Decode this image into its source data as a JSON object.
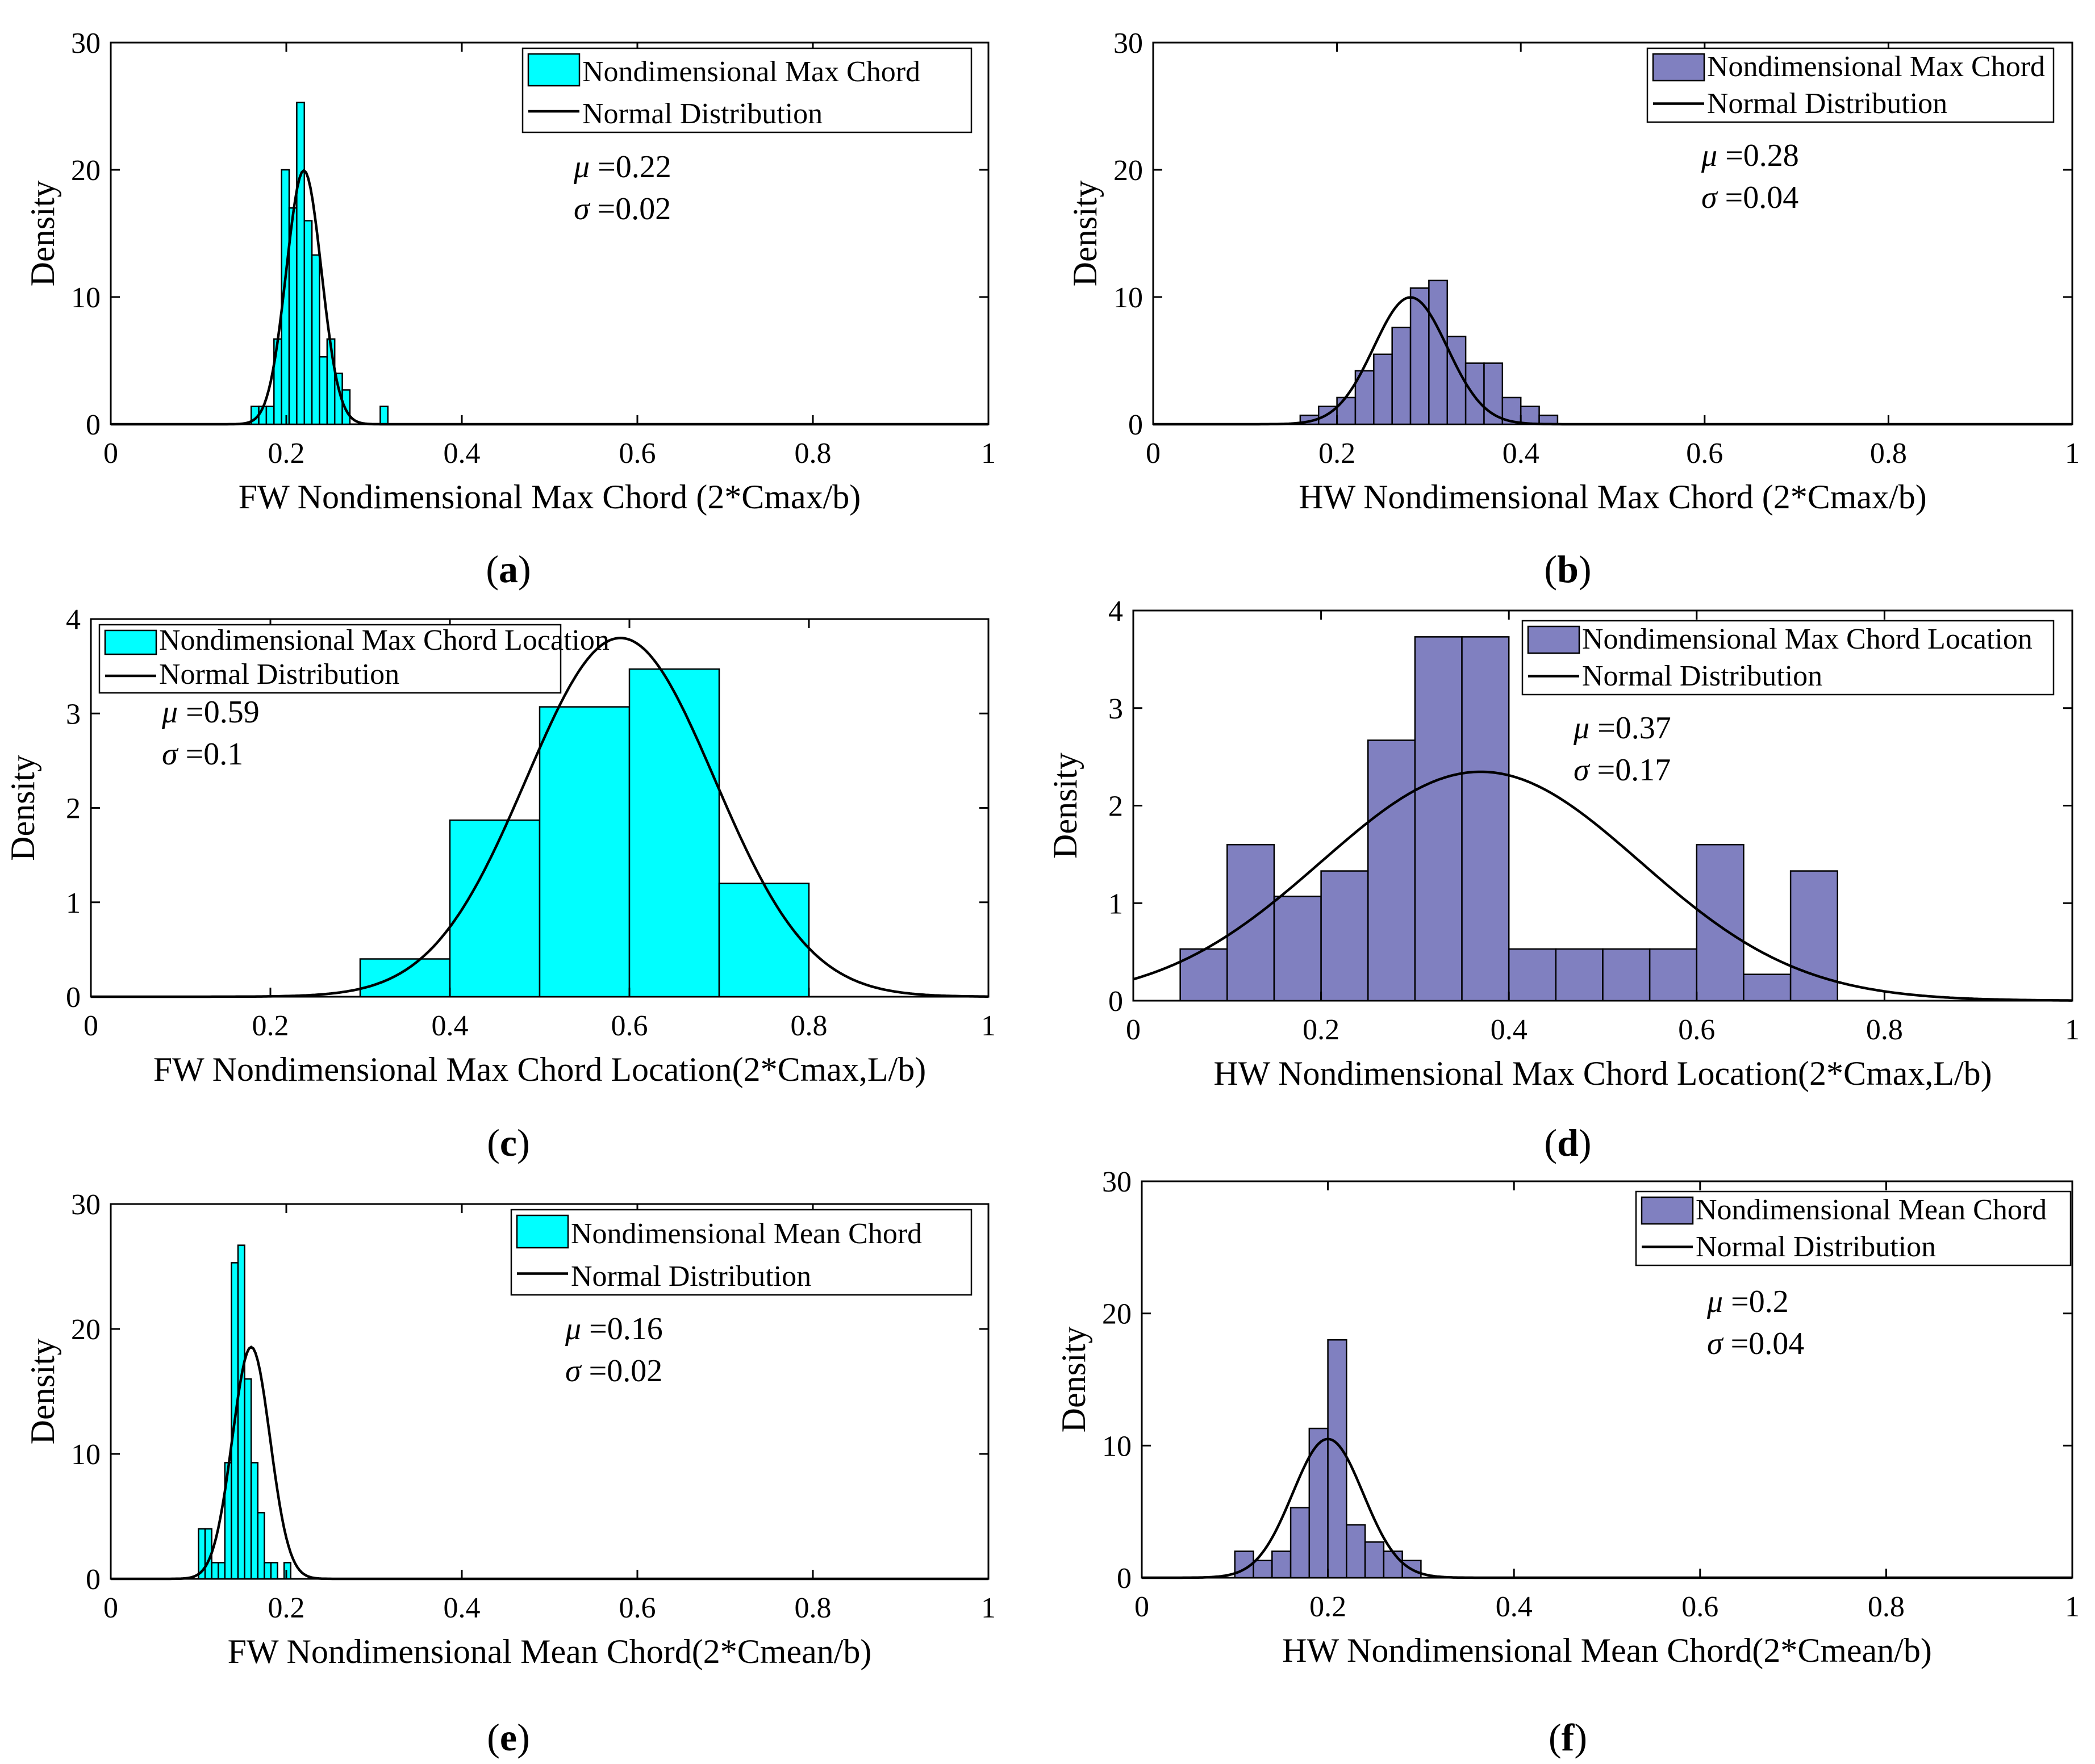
{
  "chart_data": [
    {
      "type": "bar",
      "panel_label": "a",
      "xlabel": "FW Nondimensional Max Chord (2*Cmax/b)",
      "ylabel": "Density",
      "xlim": [
        0,
        1
      ],
      "ylim": [
        0,
        30
      ],
      "xticks": [
        "0",
        "0.2",
        "0.4",
        "0.6",
        "0.8",
        "1"
      ],
      "yticks": [
        "0",
        "10",
        "20",
        "30"
      ],
      "legend_position": "top-right",
      "legend": [
        "Nondimensional Max Chord",
        "Normal Distribution"
      ],
      "stats": {
        "mu": "0.22",
        "sigma": "0.02"
      },
      "mu": 0.22,
      "sigma": 0.02,
      "bar_color": "#00ffff",
      "bins": {
        "start": 0.16,
        "width": 0.00865,
        "values": [
          1.4,
          1.4,
          1.4,
          6.7,
          20,
          17,
          25.3,
          16,
          13.3,
          5.3,
          6.7,
          4,
          2.7,
          0,
          0,
          0,
          0,
          1.4
        ]
      }
    },
    {
      "type": "bar",
      "panel_label": "b",
      "xlabel": "HW Nondimensional Max Chord (2*Cmax/b)",
      "ylabel": "Density",
      "xlim": [
        0,
        1
      ],
      "ylim": [
        0,
        30
      ],
      "xticks": [
        "0",
        "0.2",
        "0.4",
        "0.6",
        "0.8",
        "1"
      ],
      "yticks": [
        "0",
        "10",
        "20",
        "30"
      ],
      "legend_position": "top-right",
      "legend": [
        "Nondimensional Max Chord",
        "Normal Distribution"
      ],
      "stats": {
        "mu": "0.28",
        "sigma": "0.04"
      },
      "mu": 0.28,
      "sigma": 0.04,
      "bar_color": "#8080c0",
      "bins": {
        "start": 0.16,
        "width": 0.02,
        "values": [
          0.7,
          1.4,
          2.1,
          4.2,
          5.5,
          7.6,
          10.7,
          11.3,
          6.9,
          4.8,
          4.8,
          2.1,
          1.4,
          0.7
        ]
      }
    },
    {
      "type": "bar",
      "panel_label": "c",
      "xlabel": "FW Nondimensional Max Chord Location(2*Cmax,L/b)",
      "ylabel": "Density",
      "xlim": [
        0,
        1
      ],
      "ylim": [
        0,
        4
      ],
      "xticks": [
        "0",
        "0.2",
        "0.4",
        "0.6",
        "0.8",
        "1"
      ],
      "yticks": [
        "0",
        "1",
        "2",
        "3",
        "4"
      ],
      "legend_position": "top-left",
      "legend": [
        "Nondimensional Max Chord Location",
        "Normal Distribution"
      ],
      "stats": {
        "mu": "0.59",
        "sigma": "0.1"
      },
      "mu": 0.59,
      "sigma": 0.105,
      "bar_color": "#00ffff",
      "bins": {
        "start": 0.3,
        "width": 0.1,
        "values": [
          0.4,
          1.87,
          3.07,
          3.47,
          1.2
        ]
      }
    },
    {
      "type": "bar",
      "panel_label": "d",
      "xlabel": "HW Nondimensional Max Chord Location(2*Cmax,L/b)",
      "ylabel": "Density",
      "xlim": [
        0,
        1
      ],
      "ylim": [
        0,
        4
      ],
      "xticks": [
        "0",
        "0.2",
        "0.4",
        "0.6",
        "0.8",
        "1"
      ],
      "yticks": [
        "0",
        "1",
        "2",
        "3",
        "4"
      ],
      "legend_position": "top-right",
      "legend": [
        "Nondimensional Max Chord Location",
        "Normal Distribution"
      ],
      "stats": {
        "mu": "0.37",
        "sigma": "0.17"
      },
      "mu": 0.37,
      "sigma": 0.17,
      "bar_color": "#8080c0",
      "bins": {
        "start": 0.05,
        "width": 0.05,
        "values": [
          0.53,
          1.6,
          1.07,
          1.33,
          2.67,
          3.73,
          3.73,
          0.53,
          0.53,
          0.53,
          0.53,
          1.6,
          0.27,
          1.33
        ]
      }
    },
    {
      "type": "bar",
      "panel_label": "e",
      "xlabel": "FW Nondimensional Mean Chord(2*Cmean/b)",
      "ylabel": "Density",
      "xlim": [
        0,
        1
      ],
      "ylim": [
        0,
        30
      ],
      "xticks": [
        "0",
        "0.2",
        "0.4",
        "0.6",
        "0.8",
        "1"
      ],
      "yticks": [
        "0",
        "10",
        "20",
        "30"
      ],
      "legend_position": "top-right",
      "legend": [
        "Nondimensional Mean Chord",
        "Normal Distribution"
      ],
      "stats": {
        "mu": "0.16",
        "sigma": "0.02"
      },
      "mu": 0.16,
      "sigma": 0.0215,
      "bar_color": "#00ffff",
      "bins": {
        "start": 0.1,
        "width": 0.0075,
        "values": [
          4,
          4,
          1.3,
          1.3,
          9.3,
          25.3,
          26.7,
          16,
          9.3,
          5.3,
          1.3,
          1.3,
          0,
          1.3
        ]
      }
    },
    {
      "type": "bar",
      "panel_label": "f",
      "xlabel": "HW Nondimensional Mean Chord(2*Cmean/b)",
      "ylabel": "Density",
      "xlim": [
        0,
        1
      ],
      "ylim": [
        0,
        30
      ],
      "xticks": [
        "0",
        "0.2",
        "0.4",
        "0.6",
        "0.8",
        "1"
      ],
      "yticks": [
        "0",
        "10",
        "20",
        "30"
      ],
      "legend_position": "top-right",
      "legend": [
        "Nondimensional Mean Chord",
        "Normal Distribution"
      ],
      "stats": {
        "mu": "0.2",
        "sigma": "0.04"
      },
      "mu": 0.2,
      "sigma": 0.038,
      "bar_color": "#8080c0",
      "bins": {
        "start": 0.1,
        "width": 0.02,
        "values": [
          2,
          1.3,
          2,
          5.3,
          11.3,
          18,
          4,
          2.7,
          2,
          1.3
        ]
      }
    }
  ]
}
